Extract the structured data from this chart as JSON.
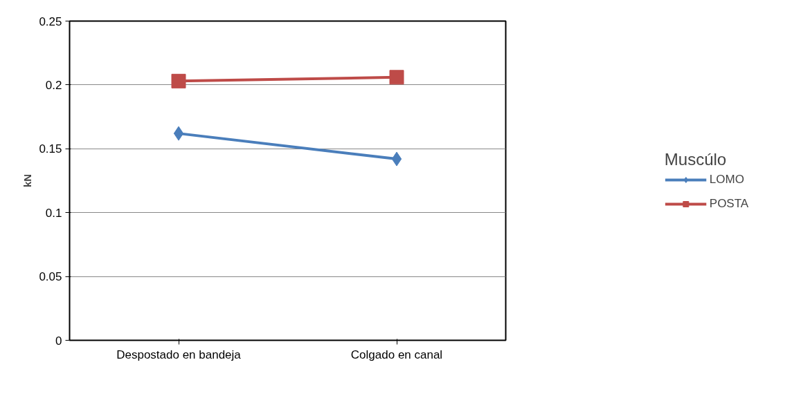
{
  "chart_data": {
    "type": "line",
    "ylabel": "kN",
    "legend_title": "Muscúlo",
    "categories": [
      "Despostado en bandeja",
      "Colgado en canal"
    ],
    "series": [
      {
        "name": "LOMO",
        "color": "#4a7ebb",
        "values": [
          0.162,
          0.142
        ],
        "marker": "diamond"
      },
      {
        "name": "POSTA",
        "color": "#be4b48",
        "values": [
          0.203,
          0.206
        ],
        "marker": "square"
      }
    ],
    "ylim": [
      0,
      0.25
    ],
    "yticks": [
      0,
      0.05,
      0.1,
      0.15,
      0.2,
      0.25
    ],
    "grid": "y",
    "legend": "right"
  }
}
